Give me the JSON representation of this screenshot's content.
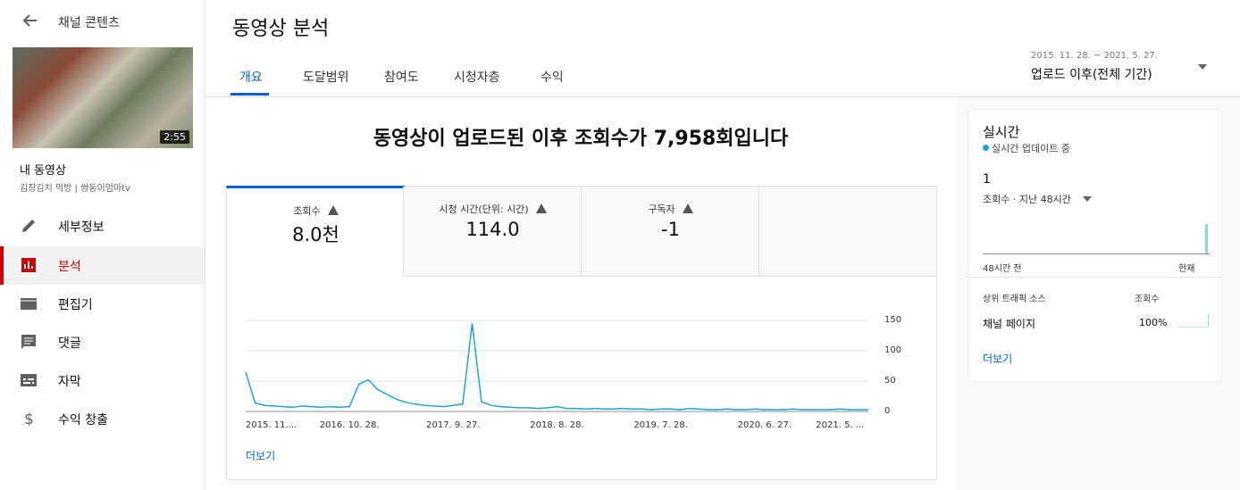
{
  "sidebar": {
    "back_label": "채널 콘텐츠",
    "thumbnail_duration": "2:55",
    "video_title": "내 동영상",
    "video_subtitle": "김장김치 먹방 | 쌍둥이엄마tv",
    "menu": [
      "세부정보",
      "분석",
      "편집기",
      "댓글",
      "자막",
      "수익 창출"
    ]
  },
  "header": {
    "title": "동영상 분석",
    "tabs": [
      "개요",
      "도달범위",
      "참여도",
      "시청자층",
      "수익"
    ],
    "date_range": "2015. 11. 28. ~ 2021. 5. 27.",
    "period": "업로드 이후(전체 기간)"
  },
  "summary": {
    "headline": "동영상이 업로드된 이후 조회수가 7,958회입니다",
    "metrics": [
      {
        "label": "조회수",
        "value": "8.0천"
      },
      {
        "label": "시청 시간(단위: 시간)",
        "value": "114.0"
      },
      {
        "label": "구독자",
        "value": "-1"
      }
    ],
    "more": "더보기"
  },
  "chart_data": {
    "type": "line",
    "color": "#1ea6d0",
    "grid": true,
    "categories": [
      "2015. 11....",
      null,
      null,
      null,
      null,
      null,
      null,
      null,
      null,
      null,
      null,
      "2016. 10. 28.",
      null,
      null,
      null,
      null,
      null,
      null,
      null,
      null,
      null,
      null,
      "2017. 9. 27.",
      null,
      null,
      null,
      null,
      null,
      null,
      null,
      null,
      null,
      null,
      "2018. 8. 28.",
      null,
      null,
      null,
      null,
      null,
      null,
      null,
      null,
      null,
      null,
      "2019. 7. 28.",
      null,
      null,
      null,
      null,
      null,
      null,
      null,
      null,
      null,
      null,
      "2020. 6. 27.",
      null,
      null,
      null,
      null,
      null,
      null,
      null,
      "2021. 5. ...",
      null,
      null,
      null
    ],
    "values": [
      65,
      14,
      10,
      9,
      8,
      7,
      9,
      8,
      7,
      8,
      7,
      8,
      45,
      52,
      36,
      28,
      20,
      15,
      12,
      10,
      9,
      8,
      10,
      12,
      145,
      16,
      10,
      8,
      7,
      6,
      6,
      5,
      6,
      8,
      5,
      5,
      4,
      5,
      4,
      4,
      5,
      4,
      4,
      3,
      4,
      4,
      3,
      5,
      4,
      3,
      3,
      4,
      3,
      3,
      4,
      3,
      3,
      3,
      4,
      3,
      3,
      3,
      3,
      4,
      3,
      3,
      3
    ],
    "ylim": [
      0,
      150
    ],
    "yticks": [
      0,
      50,
      100,
      150
    ]
  },
  "realtime": {
    "title": "실시간",
    "status": "실시간 업데이트 중",
    "count": "1",
    "metric": "조회수 · 지난 48시간",
    "axis_start": "48시간 전",
    "axis_end": "현재",
    "table_headers": [
      "상위 트래픽 소스",
      "조회수"
    ],
    "rows": [
      [
        "채널 페이지",
        "100%"
      ]
    ],
    "more": "더보기"
  }
}
